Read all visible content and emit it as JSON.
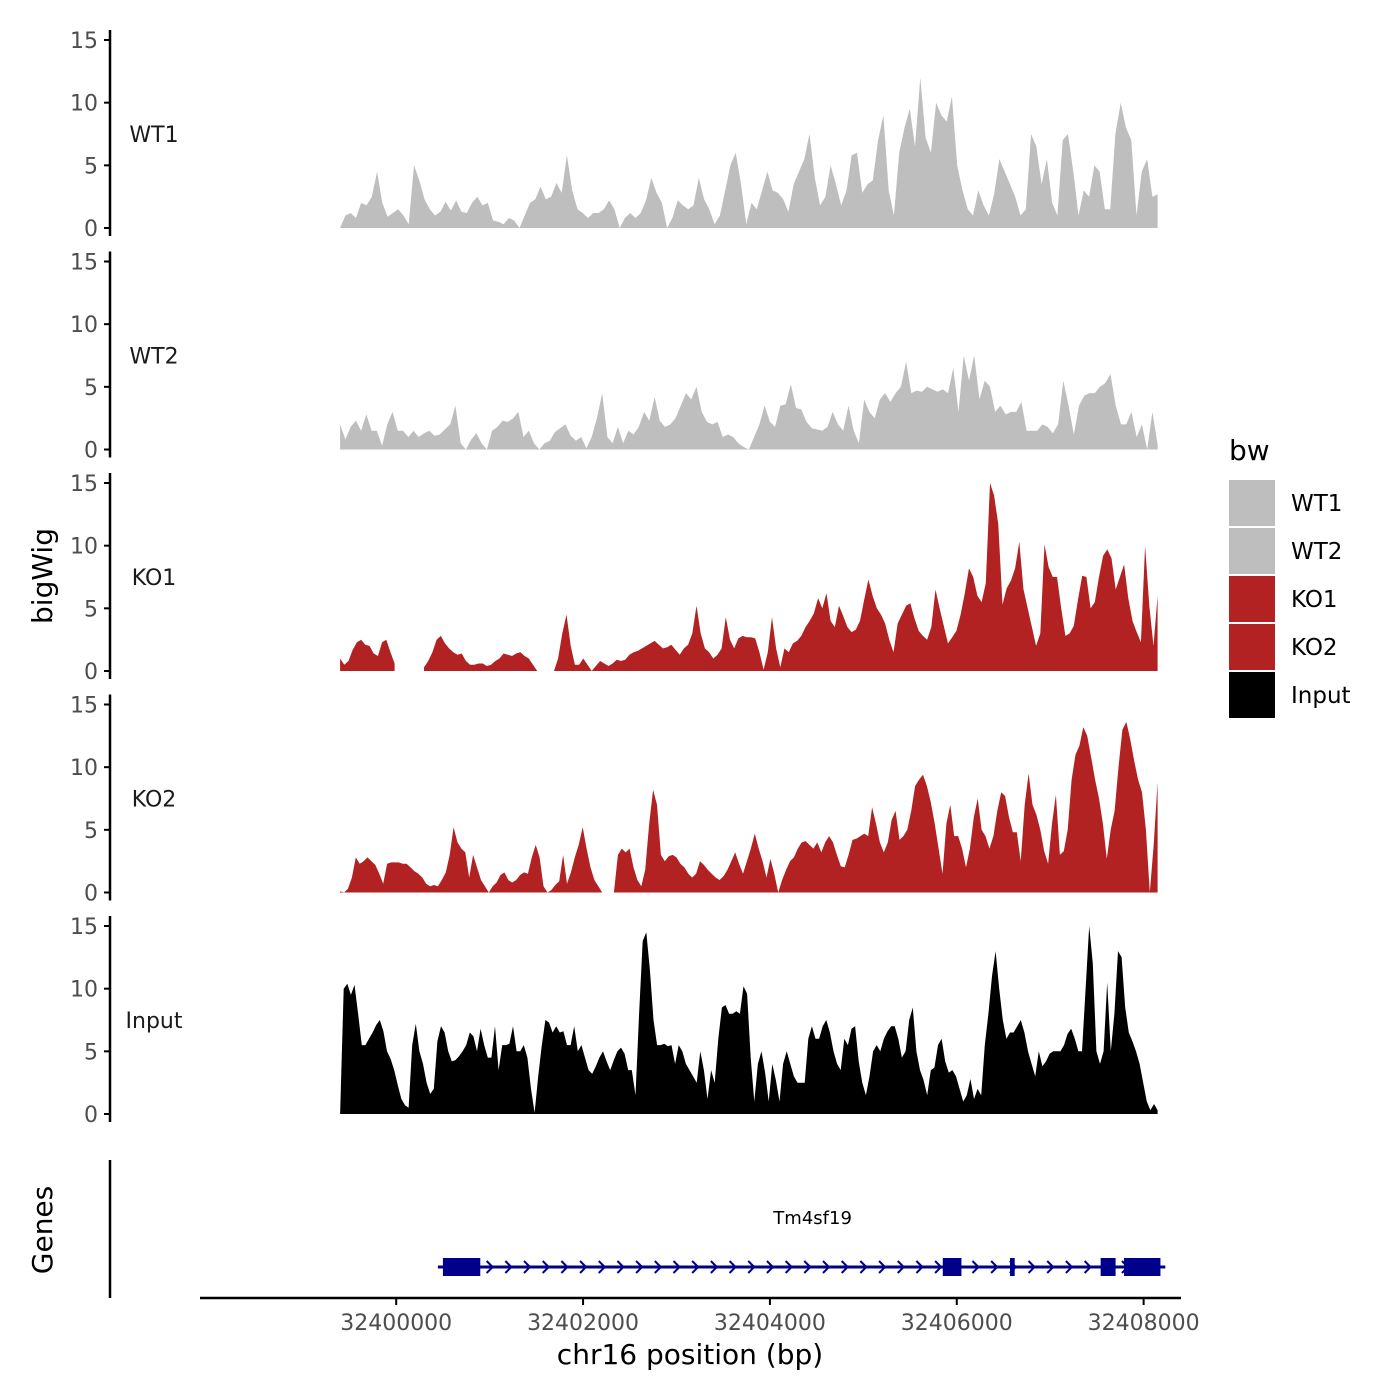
{
  "colors": {
    "WT": "#bebebe",
    "KO": "#b22222",
    "Input": "#000000",
    "gene": "#00008b",
    "axis": "#000000",
    "tick_text": "#4d4d4d"
  },
  "chart_data": {
    "type": "area",
    "title": "",
    "ylabel": "bigWig",
    "xlabel": "chr16 position (bp)",
    "genes_label": "Genes",
    "xlim": [
      32397900,
      32408400
    ],
    "x_ticks": [
      32400000,
      32402000,
      32404000,
      32406000,
      32408000
    ],
    "ylim": [
      0,
      15
    ],
    "y_ticks": [
      0,
      5,
      10,
      15
    ],
    "x_start": 32399400,
    "x_end": 32408150,
    "legend": {
      "title": "bw",
      "position": "right",
      "entries": [
        {
          "label": "WT1",
          "color": "#bebebe"
        },
        {
          "label": "WT2",
          "color": "#bebebe"
        },
        {
          "label": "KO1",
          "color": "#b22222"
        },
        {
          "label": "KO2",
          "color": "#b22222"
        },
        {
          "label": "Input",
          "color": "#000000"
        }
      ]
    },
    "series": [
      {
        "name": "WT1",
        "color": "#bebebe",
        "values": [
          0,
          1,
          1.2,
          0.8,
          2,
          1.8,
          2.5,
          4.5,
          2,
          0.9,
          1.2,
          1.5,
          1,
          0.3,
          5,
          3.8,
          2.3,
          1.5,
          1,
          1.3,
          2.1,
          1.4,
          2.2,
          1.3,
          1.2,
          2,
          2.5,
          1.8,
          2,
          0.6,
          0.5,
          0.3,
          0.8,
          0.6,
          0,
          1,
          2,
          2.3,
          3.3,
          2.3,
          2.5,
          3.6,
          2.8,
          5.8,
          3,
          1.5,
          1.2,
          0.8,
          1.2,
          1.2,
          1.5,
          2.2,
          1.5,
          0,
          0.8,
          1.2,
          0.8,
          1.2,
          2.2,
          4,
          2.8,
          2,
          0,
          0.8,
          2.2,
          1.8,
          1.5,
          1.8,
          4,
          2.3,
          1.5,
          0.3,
          1,
          3,
          5,
          6,
          3.5,
          0.3,
          2,
          1.5,
          3,
          4.5,
          3,
          2.8,
          2.3,
          1.3,
          3.5,
          4.5,
          5.5,
          7.5,
          4,
          1.8,
          2.5,
          5,
          3.5,
          1.8,
          3,
          5.8,
          6,
          2.8,
          3.5,
          3.8,
          7,
          9,
          3,
          1,
          6,
          8,
          9.5,
          6.5,
          12,
          7.2,
          6,
          10,
          9,
          8.5,
          10.5,
          5,
          3,
          1.5,
          1,
          3,
          1.8,
          1,
          2.7,
          5.5,
          4.5,
          3.5,
          2.5,
          1,
          1.5,
          7.5,
          6.5,
          3.5,
          5.5,
          2,
          1,
          7,
          7.5,
          4.5,
          1,
          3,
          2.5,
          5,
          4.5,
          1.5,
          1.5,
          7.5,
          10,
          8,
          7,
          1,
          4.5,
          5.5,
          2.5,
          2.7
        ]
      },
      {
        "name": "WT2",
        "color": "#bebebe",
        "values": [
          2,
          0.8,
          1.8,
          2.3,
          1.5,
          2.8,
          1.5,
          1.5,
          0.3,
          2,
          3,
          1.5,
          1.5,
          1,
          1.5,
          1,
          1.3,
          1.5,
          1.1,
          1.2,
          1.6,
          2,
          3.5,
          0.5,
          0,
          0.8,
          1.3,
          0.5,
          0,
          1.5,
          1.8,
          2.3,
          2.2,
          2.5,
          3,
          1,
          1.5,
          0.5,
          0,
          0.5,
          0.7,
          1.4,
          1.7,
          2,
          1.1,
          0.7,
          1,
          0.1,
          1,
          2.5,
          4.5,
          1,
          0.5,
          1.8,
          0.5,
          1.5,
          1.2,
          1.8,
          3,
          2.3,
          4.2,
          2.3,
          1.8,
          2,
          2.5,
          3.5,
          4.5,
          4,
          5,
          3,
          2.2,
          2,
          2.2,
          1,
          1.2,
          1,
          0.5,
          0.2,
          0,
          1,
          2,
          3.5,
          2.2,
          1.8,
          3.5,
          3.6,
          5.2,
          3.3,
          3.2,
          2.2,
          1.7,
          1.6,
          1.5,
          1.8,
          3,
          2,
          1.5,
          3.5,
          1.5,
          0.5,
          4,
          3,
          2.5,
          4,
          4.5,
          3.8,
          4.5,
          5,
          7,
          4.5,
          4.7,
          4.6,
          5,
          4.8,
          4.6,
          4.8,
          4.5,
          6.5,
          3,
          7.5,
          5.5,
          7.5,
          4,
          5.5,
          5,
          3,
          3.5,
          2.8,
          3,
          3,
          3.8,
          1.5,
          1.5,
          1.5,
          2,
          1.8,
          1.3,
          2,
          5.5,
          3.5,
          1.2,
          3.5,
          4.3,
          4.5,
          4.5,
          5,
          5.3,
          6,
          3.5,
          2,
          2,
          3,
          1,
          2,
          0,
          3,
          0.4
        ]
      },
      {
        "name": "KO1",
        "color": "#b22222",
        "values": [
          1,
          0.5,
          0.8,
          1.7,
          2.3,
          2.5,
          2.1,
          2,
          1.4,
          1.2,
          2.3,
          2.5,
          1.5,
          0.6,
          null,
          null,
          null,
          null,
          null,
          null,
          0.3,
          0.8,
          1.5,
          2.5,
          2.8,
          2.2,
          1.8,
          1.5,
          1.3,
          1.4,
          0.8,
          0.5,
          0.5,
          0.6,
          0.6,
          0.4,
          0.5,
          0.8,
          1,
          1.4,
          1.3,
          1.2,
          1.4,
          1.5,
          1.2,
          1,
          0.5,
          0,
          null,
          null,
          null,
          0,
          1,
          3,
          4.5,
          2,
          0.5,
          0.5,
          1,
          0.5,
          0,
          0.4,
          0.8,
          0.6,
          0.4,
          0.6,
          0.9,
          0.8,
          0.9,
          1.3,
          1.5,
          1.6,
          1.8,
          2,
          2.2,
          2.4,
          2.1,
          1.8,
          1.9,
          2.1,
          1.7,
          1.3,
          1.8,
          2.1,
          3,
          5.2,
          3,
          1.8,
          1.5,
          1,
          1.3,
          1.8,
          4.3,
          2.5,
          1.8,
          2.6,
          2.8,
          2.7,
          2.7,
          2.6,
          1.5,
          0.1,
          1.5,
          4.3,
          1.8,
          0.3,
          1.8,
          1.5,
          2.2,
          2.4,
          2.8,
          3.5,
          4,
          4.6,
          5.8,
          5,
          6.2,
          4,
          3.5,
          5.2,
          4.4,
          3.5,
          3.1,
          3.3,
          4,
          5.7,
          7.3,
          6,
          5,
          4.5,
          3.8,
          2.5,
          1.5,
          3.8,
          4.5,
          5.2,
          5.4,
          4.2,
          3.2,
          2.8,
          2.5,
          3.5,
          6.5,
          5,
          3.6,
          2.2,
          2.7,
          3.2,
          4.5,
          6.2,
          8.2,
          7.5,
          6,
          5.5,
          7,
          15,
          14,
          11.7,
          5.3,
          6.6,
          7.2,
          8.2,
          10.3,
          6.5,
          5,
          3.5,
          2,
          3,
          10.1,
          8.3,
          7.5,
          7.5,
          5,
          2.8,
          3,
          3.6,
          5.7,
          7.6,
          7.5,
          5,
          5.5,
          7.5,
          9.2,
          9.7,
          9,
          6.5,
          7.5,
          8.5,
          5.8,
          4,
          3.1,
          2.3,
          10,
          5.2,
          2,
          6
        ]
      },
      {
        "name": "KO2",
        "color": "#b22222",
        "values": [
          0.1,
          0,
          0.3,
          1.2,
          2.8,
          2.3,
          2.5,
          2.8,
          2.5,
          2.2,
          1.5,
          0.7,
          2.3,
          2.4,
          2.4,
          2.4,
          2.3,
          2.3,
          2,
          1.7,
          1.5,
          1.2,
          0.7,
          0.5,
          0.6,
          0.5,
          1,
          1.6,
          3,
          5.2,
          4,
          3.5,
          3.2,
          1.2,
          3,
          2,
          1,
          0.5,
          0,
          0.5,
          0.8,
          1.4,
          1.6,
          1,
          0.8,
          1,
          1.4,
          1.6,
          1.5,
          2.8,
          3.8,
          2.8,
          0.5,
          0,
          0.2,
          0.6,
          0.9,
          3,
          0.7,
          1.6,
          2.8,
          3.8,
          5.2,
          3.5,
          2,
          1,
          0.5,
          0,
          null,
          null,
          0,
          3,
          3.5,
          3.2,
          3.5,
          2,
          1,
          0.5,
          1.8,
          5.5,
          8.2,
          7,
          3,
          2.5,
          2.9,
          3,
          2.8,
          2.3,
          2,
          1.5,
          1.2,
          1.5,
          2.5,
          2.2,
          1.8,
          1.5,
          1.2,
          1,
          1.3,
          1.8,
          2.5,
          3.2,
          2.3,
          1.5,
          2.5,
          3.5,
          4.7,
          3.5,
          2.5,
          1.2,
          2.7,
          1.5,
          0,
          1,
          1.8,
          2.5,
          2.8,
          3.5,
          4,
          4.1,
          3.8,
          3.5,
          4,
          3.2,
          4,
          4.5,
          4,
          3,
          2.1,
          2,
          3,
          4.2,
          4.3,
          4.5,
          4.7,
          4.5,
          6.8,
          5.5,
          4,
          3.2,
          4,
          5.8,
          6.5,
          4.2,
          4.5,
          5,
          6.5,
          8.5,
          9,
          9.4,
          8.5,
          7.2,
          5.5,
          3.5,
          1.5,
          5.5,
          7,
          4.5,
          4.5,
          3.5,
          2,
          3.5,
          6,
          7.5,
          5,
          4.5,
          3.5,
          4.5,
          6.5,
          8,
          7.7,
          6,
          4.8,
          4.8,
          2.5,
          7,
          9.5,
          7,
          6.2,
          5,
          3.3,
          2.3,
          5.5,
          7.8,
          3,
          3.3,
          5,
          9,
          11,
          11.7,
          13.2,
          12.5,
          10.8,
          9,
          7.5,
          5.5,
          2.7,
          5,
          6.5,
          10,
          13,
          13.6,
          12.2,
          10.5,
          9,
          8,
          5,
          0,
          3.8,
          8.8
        ]
      },
      {
        "name": "Input",
        "color": "#000000",
        "values": [
          0,
          10,
          10.4,
          9.5,
          10.3,
          8,
          5.5,
          5.5,
          6,
          6.5,
          7.1,
          7.5,
          6.6,
          5,
          4.4,
          3.5,
          2.3,
          1.2,
          0.7,
          0.5,
          5.5,
          7.2,
          5,
          4,
          2.5,
          1.6,
          2,
          5.8,
          7,
          6.5,
          5,
          4.2,
          4.3,
          4.6,
          5,
          5.5,
          6.5,
          6.2,
          5,
          6.8,
          5.5,
          4.5,
          4.5,
          7,
          3.5,
          5.5,
          5.5,
          5.6,
          7,
          5,
          5,
          5.5,
          4.5,
          2,
          0.1,
          3,
          5.5,
          7.5,
          7.3,
          6.5,
          7,
          6.5,
          6.6,
          5.5,
          5.5,
          7,
          5,
          5.5,
          4.5,
          3.5,
          3.2,
          3.8,
          4.5,
          5,
          4.2,
          3.5,
          4.3,
          5,
          5.3,
          4.8,
          3.5,
          3.5,
          1.5,
          8,
          13.8,
          14.5,
          11.5,
          7.5,
          5.5,
          5.5,
          5.6,
          5.4,
          5.5,
          4,
          5.5,
          5,
          4,
          3.5,
          3,
          2.5,
          5,
          3.5,
          1.2,
          3.5,
          2.5,
          6,
          8.5,
          8.7,
          8,
          8,
          8.2,
          8,
          10.2,
          9.6,
          4.5,
          1,
          4,
          5,
          3.3,
          1,
          4,
          2.7,
          1,
          4,
          5,
          4,
          3,
          2.5,
          2.5,
          2.5,
          6,
          7,
          6,
          6,
          7,
          7.5,
          6.5,
          5,
          4,
          3.5,
          6,
          5.5,
          6.8,
          7,
          4.2,
          2.5,
          1.5,
          3,
          5,
          5.5,
          5,
          6,
          6.6,
          7,
          7,
          6,
          4.5,
          5,
          7.5,
          8.5,
          5,
          3.5,
          2.7,
          1.5,
          3.5,
          3.7,
          5.5,
          6,
          4.2,
          3.3,
          3.5,
          3,
          2,
          1,
          1.5,
          2.8,
          1.2,
          2,
          1.5,
          5.5,
          8,
          11,
          13,
          10,
          7.5,
          6,
          6.5,
          6.5,
          7,
          7.5,
          6.5,
          5,
          4,
          3,
          5,
          3.8,
          4.2,
          4.8,
          5,
          5,
          5,
          5.5,
          6.4,
          6.8,
          6,
          5,
          5,
          10,
          15,
          12,
          5,
          4,
          5,
          10.5,
          5,
          8,
          13,
          12.5,
          8.5,
          6.5,
          5.8,
          5,
          4,
          2.5,
          1,
          0.3,
          0.8,
          0.3
        ]
      }
    ],
    "gene": {
      "name": "Tm4sf19",
      "start": 32400500,
      "end": 32408200,
      "exons": [
        {
          "start": 32400500,
          "end": 32400900
        },
        {
          "start": 32405850,
          "end": 32406050
        },
        {
          "start": 32406570,
          "end": 32406620
        },
        {
          "start": 32407540,
          "end": 32407700
        },
        {
          "start": 32407790,
          "end": 32408180
        }
      ],
      "arrow_step": 200
    }
  }
}
